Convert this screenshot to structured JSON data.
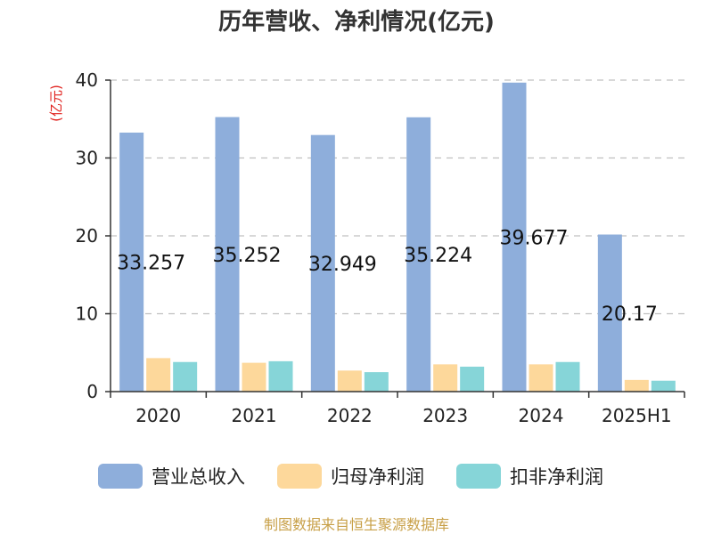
{
  "chart_data": {
    "type": "bar",
    "title": "历年营收、净利情况(亿元)",
    "ylabel": "(亿元)",
    "xlabel": "",
    "ylim": [
      0,
      40
    ],
    "yticks": [
      0,
      10,
      20,
      30,
      40
    ],
    "grid": true,
    "legend_position": "bottom",
    "categories": [
      "2020",
      "2021",
      "2022",
      "2023",
      "2024",
      "2025H1"
    ],
    "series": [
      {
        "name": "营业总收入",
        "color": "#8eaedb",
        "values": [
          33.257,
          35.252,
          32.949,
          35.224,
          39.677,
          20.17
        ],
        "labels": [
          "33.257",
          "35.252",
          "32.949",
          "35.224",
          "39.677",
          "20.17"
        ]
      },
      {
        "name": "归母净利润",
        "color": "#fdd89b",
        "values": [
          4.3,
          3.7,
          2.7,
          3.5,
          3.5,
          1.5
        ]
      },
      {
        "name": "扣非净利润",
        "color": "#86d5d8",
        "values": [
          3.8,
          3.9,
          2.5,
          3.2,
          3.8,
          1.4
        ]
      }
    ]
  },
  "footer": {
    "source": "制图数据来自恒生聚源数据库"
  }
}
